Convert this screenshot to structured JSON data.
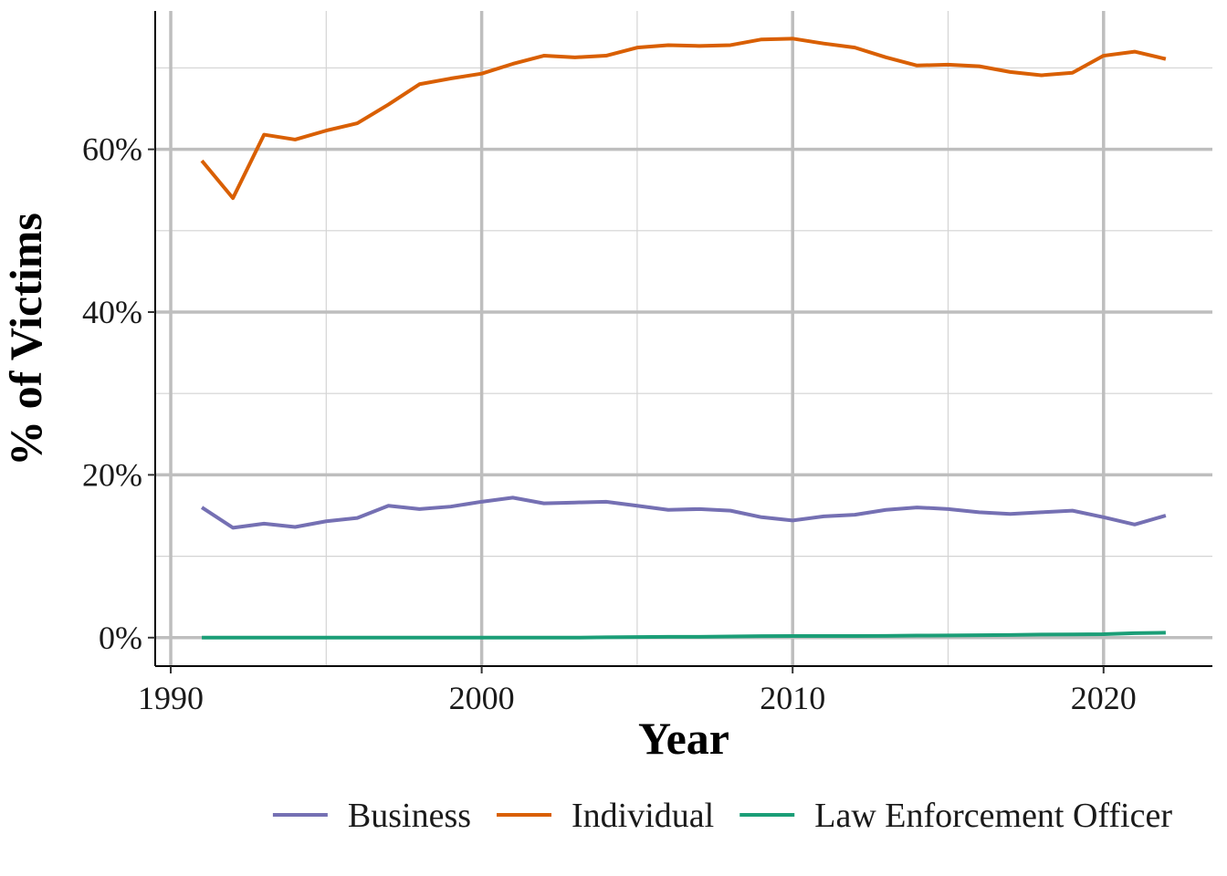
{
  "chart_data": {
    "type": "line",
    "title": "",
    "xlabel": "Year",
    "ylabel": "% of Victims",
    "xlim": [
      1989.5,
      2023.5
    ],
    "ylim": [
      -3.5,
      77
    ],
    "x_ticks": [
      1990,
      2000,
      2010,
      2020
    ],
    "x_tick_labels": [
      "1990",
      "2000",
      "2010",
      "2020"
    ],
    "y_ticks": [
      0,
      20,
      40,
      60
    ],
    "y_tick_labels": [
      "0%",
      "20%",
      "40%",
      "60%"
    ],
    "grid": true,
    "legend_position": "bottom",
    "x": [
      1991,
      1992,
      1993,
      1994,
      1995,
      1996,
      1997,
      1998,
      1999,
      2000,
      2001,
      2002,
      2003,
      2004,
      2005,
      2006,
      2007,
      2008,
      2009,
      2010,
      2011,
      2012,
      2013,
      2014,
      2015,
      2016,
      2017,
      2018,
      2019,
      2020,
      2021,
      2022
    ],
    "series": [
      {
        "name": "Business",
        "color": "#7570b3",
        "values": [
          16.0,
          13.5,
          14.0,
          13.6,
          14.3,
          14.7,
          16.2,
          15.8,
          16.1,
          16.7,
          17.2,
          16.5,
          16.6,
          16.7,
          16.2,
          15.7,
          15.8,
          15.6,
          14.8,
          14.4,
          14.9,
          15.1,
          15.7,
          16.0,
          15.8,
          15.4,
          15.2,
          15.4,
          15.6,
          14.8,
          13.9,
          15.0
        ]
      },
      {
        "name": "Individual",
        "color": "#d95f02",
        "values": [
          58.6,
          54.0,
          61.8,
          61.2,
          62.3,
          63.2,
          65.5,
          68.0,
          68.7,
          69.3,
          70.5,
          71.5,
          71.3,
          71.5,
          72.5,
          72.8,
          72.7,
          72.8,
          73.5,
          73.6,
          73.0,
          72.5,
          71.3,
          70.3,
          70.4,
          70.2,
          69.5,
          69.1,
          69.4,
          71.5,
          72.0,
          71.1
        ]
      },
      {
        "name": "Law Enforcement Officer",
        "color": "#1b9e77",
        "values": [
          0.0,
          0.0,
          0.0,
          0.0,
          0.0,
          0.0,
          0.0,
          0.0,
          0.0,
          0.0,
          0.0,
          0.0,
          0.0,
          0.05,
          0.08,
          0.1,
          0.1,
          0.15,
          0.18,
          0.2,
          0.2,
          0.2,
          0.22,
          0.25,
          0.27,
          0.3,
          0.33,
          0.38,
          0.4,
          0.42,
          0.55,
          0.6
        ]
      }
    ]
  }
}
